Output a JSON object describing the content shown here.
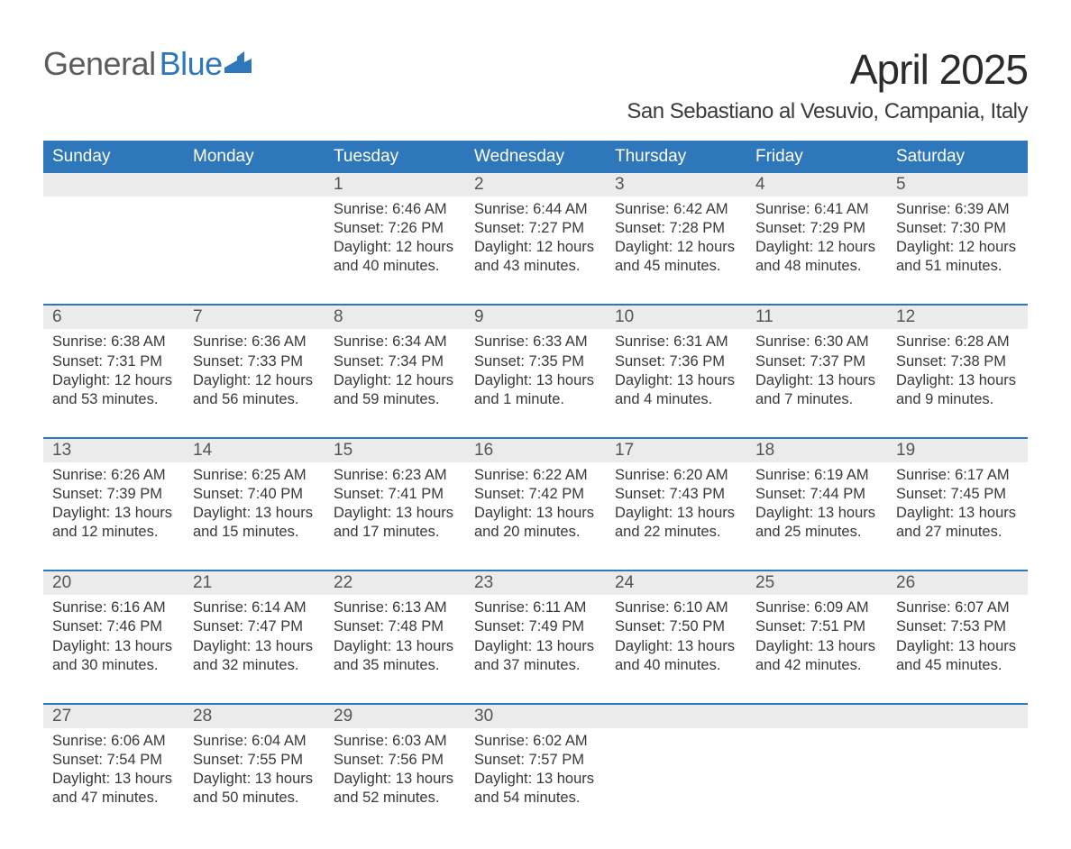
{
  "logo": {
    "text_gray": "General",
    "text_blue": "Blue"
  },
  "title": "April 2025",
  "subtitle": "San Sebastiano al Vesuvio, Campania, Italy",
  "colors": {
    "header_blue": "#2f77bb",
    "row_gray": "#ebebeb",
    "text": "#3a3a3a",
    "logo_gray": "#5c5c5c",
    "logo_blue": "#2f77bb",
    "background": "#ffffff"
  },
  "day_headers": [
    "Sunday",
    "Monday",
    "Tuesday",
    "Wednesday",
    "Thursday",
    "Friday",
    "Saturday"
  ],
  "labels": {
    "sunrise": "Sunrise:",
    "sunset": "Sunset:",
    "daylight": "Daylight:"
  },
  "weeks": [
    [
      null,
      null,
      {
        "n": "1",
        "sr": "6:46 AM",
        "ss": "7:26 PM",
        "dl": "12 hours and 40 minutes."
      },
      {
        "n": "2",
        "sr": "6:44 AM",
        "ss": "7:27 PM",
        "dl": "12 hours and 43 minutes."
      },
      {
        "n": "3",
        "sr": "6:42 AM",
        "ss": "7:28 PM",
        "dl": "12 hours and 45 minutes."
      },
      {
        "n": "4",
        "sr": "6:41 AM",
        "ss": "7:29 PM",
        "dl": "12 hours and 48 minutes."
      },
      {
        "n": "5",
        "sr": "6:39 AM",
        "ss": "7:30 PM",
        "dl": "12 hours and 51 minutes."
      }
    ],
    [
      {
        "n": "6",
        "sr": "6:38 AM",
        "ss": "7:31 PM",
        "dl": "12 hours and 53 minutes."
      },
      {
        "n": "7",
        "sr": "6:36 AM",
        "ss": "7:33 PM",
        "dl": "12 hours and 56 minutes."
      },
      {
        "n": "8",
        "sr": "6:34 AM",
        "ss": "7:34 PM",
        "dl": "12 hours and 59 minutes."
      },
      {
        "n": "9",
        "sr": "6:33 AM",
        "ss": "7:35 PM",
        "dl": "13 hours and 1 minute."
      },
      {
        "n": "10",
        "sr": "6:31 AM",
        "ss": "7:36 PM",
        "dl": "13 hours and 4 minutes."
      },
      {
        "n": "11",
        "sr": "6:30 AM",
        "ss": "7:37 PM",
        "dl": "13 hours and 7 minutes."
      },
      {
        "n": "12",
        "sr": "6:28 AM",
        "ss": "7:38 PM",
        "dl": "13 hours and 9 minutes."
      }
    ],
    [
      {
        "n": "13",
        "sr": "6:26 AM",
        "ss": "7:39 PM",
        "dl": "13 hours and 12 minutes."
      },
      {
        "n": "14",
        "sr": "6:25 AM",
        "ss": "7:40 PM",
        "dl": "13 hours and 15 minutes."
      },
      {
        "n": "15",
        "sr": "6:23 AM",
        "ss": "7:41 PM",
        "dl": "13 hours and 17 minutes."
      },
      {
        "n": "16",
        "sr": "6:22 AM",
        "ss": "7:42 PM",
        "dl": "13 hours and 20 minutes."
      },
      {
        "n": "17",
        "sr": "6:20 AM",
        "ss": "7:43 PM",
        "dl": "13 hours and 22 minutes."
      },
      {
        "n": "18",
        "sr": "6:19 AM",
        "ss": "7:44 PM",
        "dl": "13 hours and 25 minutes."
      },
      {
        "n": "19",
        "sr": "6:17 AM",
        "ss": "7:45 PM",
        "dl": "13 hours and 27 minutes."
      }
    ],
    [
      {
        "n": "20",
        "sr": "6:16 AM",
        "ss": "7:46 PM",
        "dl": "13 hours and 30 minutes."
      },
      {
        "n": "21",
        "sr": "6:14 AM",
        "ss": "7:47 PM",
        "dl": "13 hours and 32 minutes."
      },
      {
        "n": "22",
        "sr": "6:13 AM",
        "ss": "7:48 PM",
        "dl": "13 hours and 35 minutes."
      },
      {
        "n": "23",
        "sr": "6:11 AM",
        "ss": "7:49 PM",
        "dl": "13 hours and 37 minutes."
      },
      {
        "n": "24",
        "sr": "6:10 AM",
        "ss": "7:50 PM",
        "dl": "13 hours and 40 minutes."
      },
      {
        "n": "25",
        "sr": "6:09 AM",
        "ss": "7:51 PM",
        "dl": "13 hours and 42 minutes."
      },
      {
        "n": "26",
        "sr": "6:07 AM",
        "ss": "7:53 PM",
        "dl": "13 hours and 45 minutes."
      }
    ],
    [
      {
        "n": "27",
        "sr": "6:06 AM",
        "ss": "7:54 PM",
        "dl": "13 hours and 47 minutes."
      },
      {
        "n": "28",
        "sr": "6:04 AM",
        "ss": "7:55 PM",
        "dl": "13 hours and 50 minutes."
      },
      {
        "n": "29",
        "sr": "6:03 AM",
        "ss": "7:56 PM",
        "dl": "13 hours and 52 minutes."
      },
      {
        "n": "30",
        "sr": "6:02 AM",
        "ss": "7:57 PM",
        "dl": "13 hours and 54 minutes."
      },
      null,
      null,
      null
    ]
  ]
}
